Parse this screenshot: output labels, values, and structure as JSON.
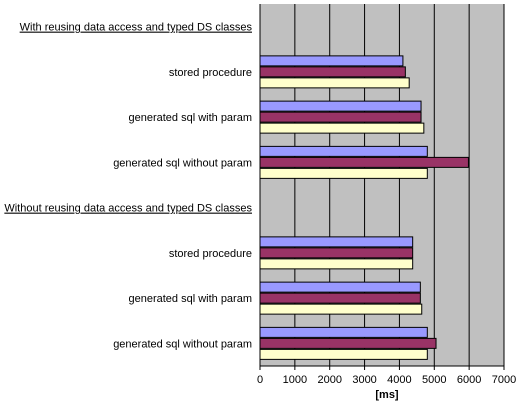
{
  "chart_data": {
    "type": "bar",
    "orientation": "horizontal",
    "xlabel": "[ms]",
    "xlim": [
      0,
      7000
    ],
    "x_ticks": [
      "0",
      "1000",
      "2000",
      "3000",
      "4000",
      "5000",
      "6000",
      "7000"
    ],
    "grid": true,
    "legend": "none",
    "colors": {
      "plot_background": "#c0c0c0",
      "gridlines": "#000000",
      "series": [
        "#9999ff",
        "#993366",
        "#ffffcc"
      ]
    },
    "rows": [
      {
        "kind": "heading",
        "label": "With reusing data access and typed DS classes"
      },
      {
        "kind": "group",
        "label": "stored procedure",
        "values": [
          4100,
          4170,
          4280
        ]
      },
      {
        "kind": "group",
        "label": "generated sql with param",
        "values": [
          4620,
          4620,
          4700
        ]
      },
      {
        "kind": "group",
        "label": "generated sql without param",
        "values": [
          4800,
          5980,
          4800
        ]
      },
      {
        "kind": "heading",
        "label": "Without reusing data access and typed DS classes"
      },
      {
        "kind": "group",
        "label": "stored procedure",
        "values": [
          4380,
          4380,
          4380
        ]
      },
      {
        "kind": "group",
        "label": "generated sql with param",
        "values": [
          4600,
          4600,
          4640
        ]
      },
      {
        "kind": "group",
        "label": "generated sql without param",
        "values": [
          4800,
          5050,
          4800
        ]
      }
    ]
  }
}
